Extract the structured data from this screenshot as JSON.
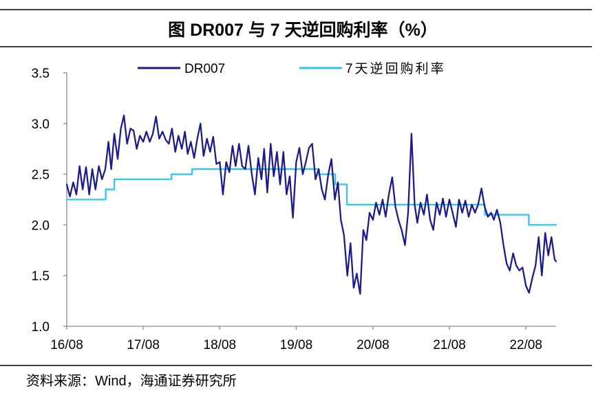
{
  "source": "资料来源：Wind，海通证券研究所",
  "chart_data": {
    "type": "line",
    "title": "图 DR007 与 7 天逆回购利率（%）",
    "xlabel": "",
    "ylabel": "",
    "xlim": [
      "2016-08-01",
      "2022-12-23"
    ],
    "ylim": [
      1.0,
      3.5
    ],
    "grid": false,
    "legend": "top",
    "x_ticks": [
      {
        "date": "2016-08-01",
        "label": "16/08"
      },
      {
        "date": "2017-08-01",
        "label": "17/08"
      },
      {
        "date": "2018-08-01",
        "label": "18/08"
      },
      {
        "date": "2019-08-01",
        "label": "19/08"
      },
      {
        "date": "2020-08-01",
        "label": "20/08"
      },
      {
        "date": "2021-08-01",
        "label": "21/08"
      },
      {
        "date": "2022-08-01",
        "label": "22/08"
      }
    ],
    "y_ticks": [
      {
        "value": 3.5,
        "label": "3.5"
      },
      {
        "value": 3.0,
        "label": "3.0"
      },
      {
        "value": 2.5,
        "label": "2.5"
      },
      {
        "value": 2.0,
        "label": "2.0"
      },
      {
        "value": 1.5,
        "label": "1.5"
      },
      {
        "value": 1.0,
        "label": "1.0"
      }
    ],
    "series": [
      {
        "name": "DR007",
        "type": "line",
        "color": "#1B1B8A",
        "x": [
          "2016-08-01",
          "2016-08-16",
          "2016-09-01",
          "2016-09-16",
          "2016-10-01",
          "2016-10-16",
          "2016-11-01",
          "2016-11-16",
          "2016-12-01",
          "2016-12-16",
          "2017-01-01",
          "2017-01-16",
          "2017-02-01",
          "2017-02-16",
          "2017-03-01",
          "2017-03-16",
          "2017-04-01",
          "2017-04-16",
          "2017-05-01",
          "2017-05-16",
          "2017-06-01",
          "2017-06-16",
          "2017-07-01",
          "2017-07-16",
          "2017-08-01",
          "2017-08-16",
          "2017-09-01",
          "2017-09-16",
          "2017-10-01",
          "2017-10-16",
          "2017-11-01",
          "2017-11-16",
          "2017-12-01",
          "2017-12-16",
          "2018-01-01",
          "2018-01-16",
          "2018-02-01",
          "2018-02-16",
          "2018-03-01",
          "2018-03-16",
          "2018-04-01",
          "2018-04-16",
          "2018-05-01",
          "2018-05-16",
          "2018-06-01",
          "2018-06-16",
          "2018-07-01",
          "2018-07-16",
          "2018-08-01",
          "2018-08-16",
          "2018-09-01",
          "2018-09-16",
          "2018-10-01",
          "2018-10-16",
          "2018-11-01",
          "2018-11-16",
          "2018-12-01",
          "2018-12-16",
          "2019-01-01",
          "2019-01-16",
          "2019-02-01",
          "2019-02-16",
          "2019-03-01",
          "2019-03-16",
          "2019-04-01",
          "2019-04-16",
          "2019-05-01",
          "2019-05-16",
          "2019-06-01",
          "2019-06-16",
          "2019-07-01",
          "2019-07-16",
          "2019-08-01",
          "2019-08-16",
          "2019-09-01",
          "2019-09-16",
          "2019-10-01",
          "2019-10-16",
          "2019-11-01",
          "2019-11-16",
          "2019-12-01",
          "2019-12-16",
          "2020-01-01",
          "2020-01-16",
          "2020-02-01",
          "2020-02-16",
          "2020-03-01",
          "2020-03-16",
          "2020-04-01",
          "2020-04-16",
          "2020-05-01",
          "2020-05-16",
          "2020-06-01",
          "2020-06-16",
          "2020-07-01",
          "2020-07-16",
          "2020-08-01",
          "2020-08-16",
          "2020-09-01",
          "2020-09-16",
          "2020-10-01",
          "2020-10-16",
          "2020-11-01",
          "2020-11-16",
          "2020-12-01",
          "2020-12-16",
          "2021-01-01",
          "2021-01-16",
          "2021-02-01",
          "2021-02-16",
          "2021-03-01",
          "2021-03-16",
          "2021-04-01",
          "2021-04-16",
          "2021-05-01",
          "2021-05-16",
          "2021-06-01",
          "2021-06-16",
          "2021-07-01",
          "2021-07-16",
          "2021-08-01",
          "2021-08-16",
          "2021-09-01",
          "2021-09-16",
          "2021-10-01",
          "2021-10-16",
          "2021-11-01",
          "2021-11-16",
          "2021-12-01",
          "2021-12-16",
          "2022-01-01",
          "2022-01-16",
          "2022-02-01",
          "2022-02-16",
          "2022-03-01",
          "2022-03-16",
          "2022-04-01",
          "2022-04-16",
          "2022-05-01",
          "2022-05-16",
          "2022-06-01",
          "2022-06-16",
          "2022-07-01",
          "2022-07-16",
          "2022-08-01",
          "2022-08-16",
          "2022-09-01",
          "2022-09-16",
          "2022-10-01",
          "2022-10-16",
          "2022-11-01",
          "2022-11-16",
          "2022-12-01",
          "2022-12-16",
          "2022-12-23"
        ],
        "y": [
          2.4,
          2.28,
          2.42,
          2.3,
          2.58,
          2.35,
          2.57,
          2.3,
          2.55,
          2.35,
          2.58,
          2.45,
          2.55,
          2.82,
          2.55,
          2.9,
          2.65,
          2.95,
          3.08,
          2.8,
          2.95,
          2.93,
          2.75,
          2.88,
          2.82,
          2.92,
          2.82,
          2.9,
          3.07,
          2.85,
          2.92,
          2.84,
          2.8,
          2.95,
          2.72,
          2.88,
          2.75,
          2.92,
          2.7,
          2.82,
          2.66,
          2.85,
          3.0,
          2.68,
          2.85,
          2.72,
          2.87,
          2.6,
          2.62,
          2.3,
          2.62,
          2.52,
          2.78,
          2.58,
          2.8,
          2.58,
          2.55,
          2.78,
          2.5,
          2.3,
          2.66,
          2.45,
          2.75,
          2.32,
          2.8,
          2.48,
          2.72,
          2.4,
          2.72,
          2.3,
          2.48,
          2.07,
          2.62,
          2.76,
          2.5,
          2.62,
          2.76,
          2.8,
          2.45,
          2.55,
          2.35,
          2.25,
          2.5,
          2.65,
          2.25,
          2.42,
          2.05,
          1.9,
          1.5,
          1.82,
          1.38,
          1.52,
          1.32,
          1.95,
          1.85,
          2.12,
          2.05,
          2.22,
          2.1,
          2.25,
          2.08,
          2.3,
          2.47,
          2.18,
          2.05,
          1.95,
          1.8,
          2.12,
          2.9,
          2.2,
          2.02,
          2.22,
          2.1,
          2.3,
          2.05,
          1.95,
          2.22,
          2.1,
          2.26,
          2.08,
          2.25,
          2.12,
          1.98,
          2.25,
          2.12,
          2.24,
          2.08,
          2.2,
          2.12,
          2.2,
          2.36,
          2.18,
          2.08,
          2.12,
          2.05,
          2.15,
          2.02,
          1.8,
          1.62,
          1.55,
          1.72,
          1.6,
          1.55,
          1.58,
          1.4,
          1.33,
          1.48,
          1.6,
          1.88,
          1.5,
          1.92,
          1.7,
          1.88,
          1.66,
          1.64
        ]
      },
      {
        "name": "7天逆回购利率",
        "type": "step",
        "color": "#2EC6F2",
        "x": [
          "2016-08-01",
          "2017-02-03",
          "2017-03-16",
          "2017-12-14",
          "2018-03-22",
          "2019-11-18",
          "2020-02-03",
          "2020-03-30",
          "2022-01-17",
          "2022-08-15",
          "2022-12-23"
        ],
        "y": [
          2.25,
          2.35,
          2.45,
          2.5,
          2.55,
          2.5,
          2.4,
          2.2,
          2.1,
          2.0,
          2.0
        ]
      }
    ]
  }
}
